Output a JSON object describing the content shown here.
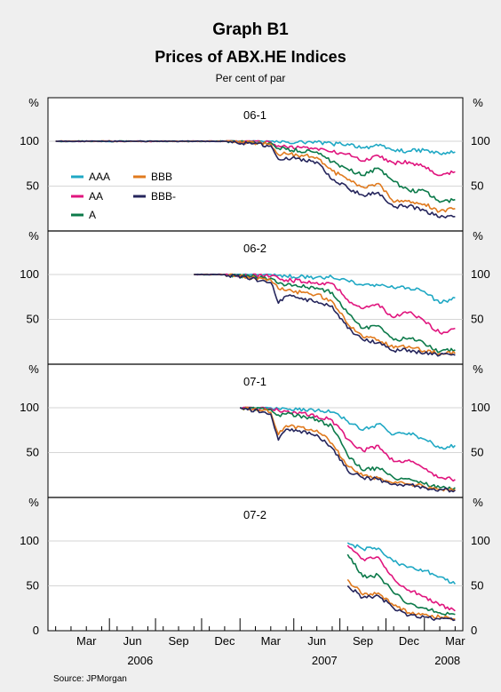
{
  "header": {
    "title": "Graph B1",
    "subtitle": "Prices of ABX.HE Indices",
    "unit_label": "Per cent of par"
  },
  "axis": {
    "y_unit": "%",
    "y_ticks": [
      0,
      50,
      100
    ],
    "month_labels": [
      "Mar",
      "Jun",
      "Sep",
      "Dec",
      "Mar",
      "Jun",
      "Sep",
      "Dec",
      "Mar"
    ],
    "year_labels": [
      "2006",
      "2007",
      "2008"
    ]
  },
  "source": "Source: JPMorgan",
  "colors": {
    "AAA": "#1fa8c4",
    "AA": "#e0157e",
    "A": "#0c7a4a",
    "BBB": "#e07a1e",
    "BBB-": "#25255c"
  },
  "chart_data": {
    "type": "line",
    "title": "Graph B1",
    "subtitle": "Prices of ABX.HE Indices",
    "ylabel": "Per cent of par",
    "ylim": [
      0,
      100
    ],
    "x_unit": "months since January 2006",
    "x_range": [
      1,
      27
    ],
    "legend": [
      "AAA",
      "AA",
      "A",
      "BBB",
      "BBB-"
    ],
    "legend_position": "top-left of first panel",
    "source": "JPMorgan",
    "panels": [
      {
        "name": "06-1",
        "x": [
          1,
          6,
          12,
          15,
          15.5,
          16,
          18,
          19,
          20,
          21,
          22,
          23,
          24,
          25,
          26,
          27
        ],
        "series": [
          {
            "name": "AAA",
            "values": [
              100,
              100,
              100,
              100,
              99,
              99,
              99,
              97,
              97,
              93,
              95,
              90,
              89,
              90,
              86,
              88
            ]
          },
          {
            "name": "AA",
            "values": [
              100,
              100,
              100,
              99,
              95,
              94,
              92,
              88,
              86,
              78,
              84,
              76,
              77,
              72,
              62,
              66
            ]
          },
          {
            "name": "A",
            "values": [
              100,
              100,
              100,
              98,
              92,
              91,
              88,
              77,
              69,
              62,
              70,
              55,
              45,
              45,
              32,
              35
            ]
          },
          {
            "name": "BBB",
            "values": [
              100,
              100,
              100,
              97,
              85,
              86,
              82,
              67,
              57,
              49,
              53,
              32,
              34,
              30,
              22,
              25
            ]
          },
          {
            "name": "BBB-",
            "values": [
              100,
              100,
              100,
              95,
              80,
              82,
              77,
              57,
              48,
              40,
              43,
              27,
              28,
              23,
              15,
              16
            ]
          }
        ]
      },
      {
        "name": "06-2",
        "x": [
          10,
          12,
          15,
          15.5,
          16,
          18,
          19,
          20,
          21,
          22,
          23,
          24,
          25,
          26,
          27
        ],
        "series": [
          {
            "name": "AAA",
            "values": [
              100,
              100,
              100,
              99,
              98,
              97,
              97,
              93,
              88,
              88,
              85,
              85,
              81,
              68,
              74
            ]
          },
          {
            "name": "AA",
            "values": [
              100,
              100,
              98,
              96,
              94,
              91,
              90,
              72,
              62,
              67,
              52,
              58,
              48,
              35,
              40
            ]
          },
          {
            "name": "A",
            "values": [
              100,
              100,
              96,
              90,
              88,
              85,
              80,
              57,
              40,
              43,
              27,
              29,
              23,
              14,
              16
            ]
          },
          {
            "name": "BBB",
            "values": [
              100,
              100,
              94,
              84,
              82,
              78,
              70,
              45,
              30,
              27,
              18,
              20,
              15,
              12,
              12
            ]
          },
          {
            "name": "BBB-",
            "values": [
              100,
              100,
              91,
              68,
              76,
              70,
              65,
              40,
              27,
              24,
              15,
              16,
              12,
              10,
              10
            ]
          }
        ]
      },
      {
        "name": "07-1",
        "x": [
          13,
          15,
          15.5,
          16,
          18,
          19,
          20,
          21,
          22,
          23,
          24,
          25,
          26,
          27
        ],
        "series": [
          {
            "name": "AAA",
            "values": [
              100,
              100,
              99,
              99,
              97,
              95,
              85,
              75,
              82,
              70,
              72,
              65,
              55,
              58
            ]
          },
          {
            "name": "AA",
            "values": [
              100,
              99,
              97,
              96,
              91,
              86,
              65,
              52,
              58,
              40,
              42,
              32,
              22,
              20
            ]
          },
          {
            "name": "A",
            "values": [
              100,
              98,
              92,
              93,
              87,
              79,
              47,
              30,
              33,
              22,
              21,
              15,
              11,
              11
            ]
          },
          {
            "name": "BBB",
            "values": [
              100,
              95,
              70,
              80,
              75,
              60,
              35,
              24,
              22,
              16,
              15,
              12,
              9,
              9
            ]
          },
          {
            "name": "BBB-",
            "values": [
              100,
              93,
              64,
              76,
              70,
              55,
              30,
              22,
              20,
              15,
              14,
              11,
              9,
              8
            ]
          }
        ]
      },
      {
        "name": "07-2",
        "x": [
          20,
          21,
          22,
          23,
          24,
          25,
          26,
          27
        ],
        "series": [
          {
            "name": "AAA",
            "values": [
              98,
              91,
              92,
              77,
              71,
              67,
              60,
              52
            ]
          },
          {
            "name": "AA",
            "values": [
              95,
              80,
              82,
              58,
              45,
              38,
              28,
              22
            ]
          },
          {
            "name": "A",
            "values": [
              85,
              60,
              62,
              42,
              30,
              25,
              20,
              18
            ]
          },
          {
            "name": "BBB",
            "values": [
              57,
              40,
              42,
              28,
              20,
              18,
              15,
              13
            ]
          },
          {
            "name": "BBB-",
            "values": [
              50,
              37,
              39,
              25,
              17,
              15,
              13,
              12
            ]
          }
        ]
      }
    ]
  }
}
